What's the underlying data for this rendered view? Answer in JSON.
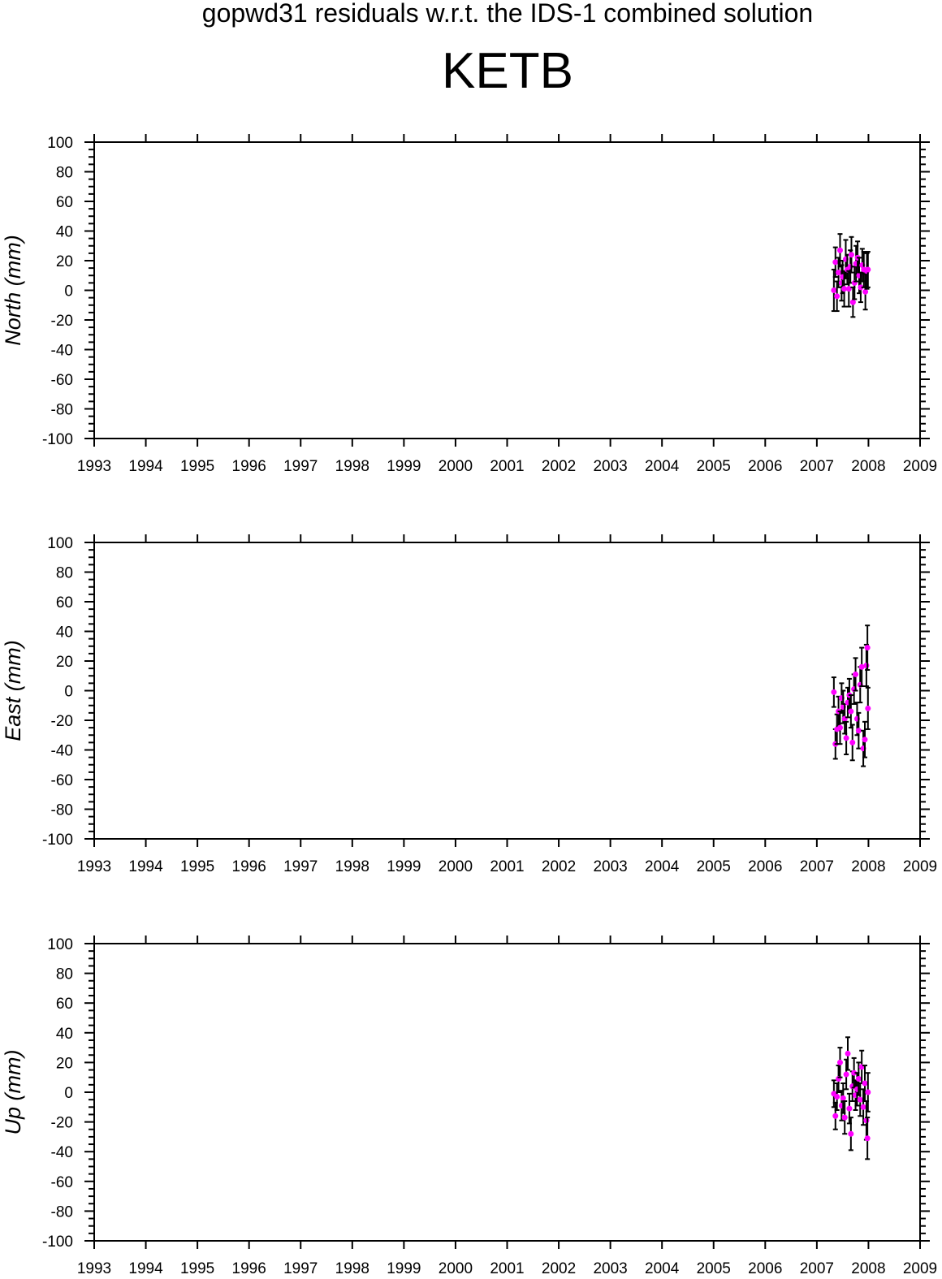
{
  "header": {
    "title": "gopwd31 residuals w.r.t. the IDS-1 combined solution",
    "station": "KETB"
  },
  "colors": {
    "point": "#ff00ff",
    "errorbar": "#000000",
    "axes": "#000000"
  },
  "chart_data": [
    {
      "type": "scatter",
      "ylabel": "North (mm)",
      "xlim": [
        1993,
        2009
      ],
      "ylim": [
        -100,
        100
      ],
      "x_ticks": [
        "1993",
        "1994",
        "1995",
        "1996",
        "1997",
        "1998",
        "1999",
        "2000",
        "2001",
        "2002",
        "2003",
        "2004",
        "2005",
        "2006",
        "2007",
        "2008",
        "2009"
      ],
      "y_ticks": [
        "100",
        "80",
        "60",
        "40",
        "20",
        "0",
        "-20",
        "-40",
        "-60",
        "-80",
        "-100"
      ],
      "points": [
        {
          "x": 2007.33,
          "y": 0,
          "err": 14
        },
        {
          "x": 2007.36,
          "y": 19,
          "err": 10
        },
        {
          "x": 2007.39,
          "y": -4,
          "err": 10
        },
        {
          "x": 2007.42,
          "y": 12,
          "err": 10
        },
        {
          "x": 2007.45,
          "y": 27,
          "err": 11
        },
        {
          "x": 2007.48,
          "y": 5,
          "err": 12
        },
        {
          "x": 2007.5,
          "y": 9,
          "err": 11
        },
        {
          "x": 2007.53,
          "y": 1,
          "err": 12
        },
        {
          "x": 2007.56,
          "y": 21,
          "err": 13
        },
        {
          "x": 2007.59,
          "y": 14,
          "err": 10
        },
        {
          "x": 2007.62,
          "y": 1,
          "err": 12
        },
        {
          "x": 2007.65,
          "y": 16,
          "err": 11
        },
        {
          "x": 2007.67,
          "y": 24,
          "err": 12
        },
        {
          "x": 2007.7,
          "y": -8,
          "err": 10
        },
        {
          "x": 2007.73,
          "y": 5,
          "err": 11
        },
        {
          "x": 2007.76,
          "y": 18,
          "err": 12
        },
        {
          "x": 2007.79,
          "y": 22,
          "err": 11
        },
        {
          "x": 2007.82,
          "y": 10,
          "err": 12
        },
        {
          "x": 2007.85,
          "y": 2,
          "err": 10
        },
        {
          "x": 2007.88,
          "y": 17,
          "err": 11
        },
        {
          "x": 2007.91,
          "y": 14,
          "err": 12
        },
        {
          "x": 2007.94,
          "y": -1,
          "err": 12
        },
        {
          "x": 2007.97,
          "y": 13,
          "err": 12
        },
        {
          "x": 2007.99,
          "y": 14,
          "err": 12
        }
      ]
    },
    {
      "type": "scatter",
      "ylabel": "East (mm)",
      "xlim": [
        1993,
        2009
      ],
      "ylim": [
        -100,
        100
      ],
      "x_ticks": [
        "1993",
        "1994",
        "1995",
        "1996",
        "1997",
        "1998",
        "1999",
        "2000",
        "2001",
        "2002",
        "2003",
        "2004",
        "2005",
        "2006",
        "2007",
        "2008",
        "2009"
      ],
      "y_ticks": [
        "100",
        "80",
        "60",
        "40",
        "20",
        "0",
        "-20",
        "-40",
        "-60",
        "-80",
        "-100"
      ],
      "points": [
        {
          "x": 2007.33,
          "y": -1,
          "err": 10
        },
        {
          "x": 2007.36,
          "y": -36,
          "err": 10
        },
        {
          "x": 2007.39,
          "y": -26,
          "err": 10
        },
        {
          "x": 2007.42,
          "y": -14,
          "err": 10
        },
        {
          "x": 2007.45,
          "y": -25,
          "err": 11
        },
        {
          "x": 2007.48,
          "y": -5,
          "err": 10
        },
        {
          "x": 2007.51,
          "y": -11,
          "err": 11
        },
        {
          "x": 2007.54,
          "y": -19,
          "err": 10
        },
        {
          "x": 2007.57,
          "y": -32,
          "err": 11
        },
        {
          "x": 2007.6,
          "y": -8,
          "err": 10
        },
        {
          "x": 2007.63,
          "y": -3,
          "err": 11
        },
        {
          "x": 2007.66,
          "y": -14,
          "err": 11
        },
        {
          "x": 2007.69,
          "y": -35,
          "err": 12
        },
        {
          "x": 2007.72,
          "y": 1,
          "err": 10
        },
        {
          "x": 2007.75,
          "y": 11,
          "err": 11
        },
        {
          "x": 2007.78,
          "y": -19,
          "err": 11
        },
        {
          "x": 2007.81,
          "y": -27,
          "err": 12
        },
        {
          "x": 2007.84,
          "y": 4,
          "err": 12
        },
        {
          "x": 2007.87,
          "y": 16,
          "err": 13
        },
        {
          "x": 2007.9,
          "y": -39,
          "err": 12
        },
        {
          "x": 2007.93,
          "y": -33,
          "err": 12
        },
        {
          "x": 2007.96,
          "y": 17,
          "err": 14
        },
        {
          "x": 2007.98,
          "y": 29,
          "err": 15
        },
        {
          "x": 2007.99,
          "y": -12,
          "err": 14
        }
      ]
    },
    {
      "type": "scatter",
      "ylabel": "Up (mm)",
      "xlim": [
        1993,
        2009
      ],
      "ylim": [
        -100,
        100
      ],
      "x_ticks": [
        "1993",
        "1994",
        "1995",
        "1996",
        "1997",
        "1998",
        "1999",
        "2000",
        "2001",
        "2002",
        "2003",
        "2004",
        "2005",
        "2006",
        "2007",
        "2008",
        "2009"
      ],
      "y_ticks": [
        "100",
        "80",
        "60",
        "40",
        "20",
        "0",
        "-20",
        "-40",
        "-60",
        "-80",
        "-100"
      ],
      "points": [
        {
          "x": 2007.33,
          "y": -1,
          "err": 9
        },
        {
          "x": 2007.36,
          "y": -16,
          "err": 9
        },
        {
          "x": 2007.39,
          "y": -3,
          "err": 9
        },
        {
          "x": 2007.42,
          "y": 9,
          "err": 9
        },
        {
          "x": 2007.45,
          "y": 20,
          "err": 10
        },
        {
          "x": 2007.48,
          "y": -9,
          "err": 10
        },
        {
          "x": 2007.51,
          "y": -4,
          "err": 10
        },
        {
          "x": 2007.54,
          "y": -17,
          "err": 11
        },
        {
          "x": 2007.57,
          "y": 12,
          "err": 10
        },
        {
          "x": 2007.6,
          "y": 26,
          "err": 11
        },
        {
          "x": 2007.63,
          "y": -11,
          "err": 10
        },
        {
          "x": 2007.66,
          "y": -28,
          "err": 11
        },
        {
          "x": 2007.69,
          "y": 4,
          "err": 10
        },
        {
          "x": 2007.72,
          "y": 13,
          "err": 10
        },
        {
          "x": 2007.75,
          "y": -2,
          "err": 10
        },
        {
          "x": 2007.78,
          "y": 2,
          "err": 11
        },
        {
          "x": 2007.81,
          "y": 9,
          "err": 11
        },
        {
          "x": 2007.84,
          "y": -5,
          "err": 11
        },
        {
          "x": 2007.87,
          "y": 17,
          "err": 11
        },
        {
          "x": 2007.9,
          "y": -10,
          "err": 12
        },
        {
          "x": 2007.93,
          "y": 6,
          "err": 12
        },
        {
          "x": 2007.96,
          "y": -19,
          "err": 13
        },
        {
          "x": 2007.98,
          "y": -31,
          "err": 14
        },
        {
          "x": 2007.99,
          "y": 0,
          "err": 13
        }
      ]
    }
  ]
}
